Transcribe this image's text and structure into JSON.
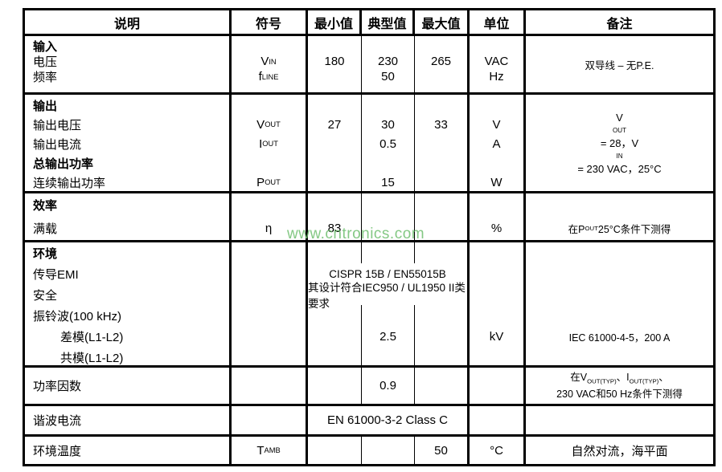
{
  "watermark": {
    "text": "www.cntronics.com",
    "color": "#6fbf6f"
  },
  "header": {
    "desc": "说明",
    "symbol": "符号",
    "min": "最小值",
    "typ": "典型值",
    "max": "最大值",
    "unit": "单位",
    "notes": "备注"
  },
  "input": {
    "title": "输入",
    "voltage": {
      "desc": "电压",
      "sym": "V~IN~",
      "min": "180",
      "typ": "230",
      "max": "265",
      "unit": "VAC"
    },
    "frequency": {
      "desc": "频率",
      "sym": "f~LINE~",
      "typ": "50",
      "unit": "Hz"
    },
    "note": "双导线 – 无P.E."
  },
  "output": {
    "title": "输出",
    "voltage": {
      "desc": "输出电压",
      "sym": "V~OUT~",
      "min": "27",
      "typ": "30",
      "max": "33",
      "unit": "V"
    },
    "current": {
      "desc": "输出电流",
      "sym": "I~OUT~",
      "typ": "0.5",
      "unit": "A"
    },
    "total_power_title": "总输出功率",
    "cont_power": {
      "desc": "连续输出功率",
      "sym": "P~OUT~",
      "typ": "15",
      "unit": "W"
    },
    "note": "V~OUT~ = 28，V~IN~ = 230 VAC，25°C"
  },
  "efficiency": {
    "title": "效率",
    "full_load": {
      "desc": "满载",
      "sym": "η",
      "min": "83",
      "unit": "%"
    },
    "note": "在P~OUT~ 25°C条件下测得"
  },
  "environment": {
    "title": "环境",
    "emi": {
      "desc": "传导EMI",
      "standard": "CISPR 15B / EN55015B"
    },
    "safety": {
      "desc": "安全",
      "standard": "其设计符合IEC950 / UL1950 II类要求"
    },
    "ring_wave": {
      "desc": "振铃波(100 kHz)"
    },
    "diff_mode": {
      "desc": "差模(L1-L2)",
      "typ": "2.5",
      "unit": "kV",
      "note": "IEC 61000-4-5，200 A"
    },
    "common_mode": {
      "desc": "共模(L1-L2)"
    }
  },
  "power_factor": {
    "desc": "功率因数",
    "typ": "0.9",
    "note_line1": "在V~OUT(TYP)~、I~OUT(TYP)~、",
    "note_line2": "230 VAC和50 Hz条件下测得"
  },
  "harmonic": {
    "desc": "谐波电流",
    "standard": "EN 61000-3-2 Class C"
  },
  "ambient": {
    "desc": "环境温度",
    "sym": "T~AMB~",
    "max": "50",
    "unit": "°C",
    "note": "自然对流，海平面"
  }
}
